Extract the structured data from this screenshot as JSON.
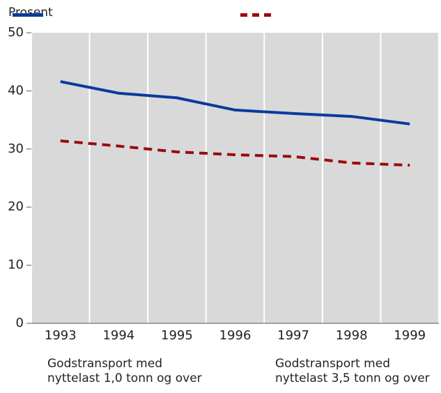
{
  "chart_data": {
    "type": "line",
    "y_label": "Prosent",
    "categories": [
      "1993",
      "1994",
      "1995",
      "1996",
      "1997",
      "1998",
      "1999"
    ],
    "series": [
      {
        "name": "Godstransport med nyttelast 1,0 tonn og over",
        "color": "#0b3a9e",
        "dashed": false,
        "values": [
          41.6,
          39.6,
          38.8,
          36.7,
          36.1,
          35.6,
          34.3
        ]
      },
      {
        "name": "Godstransport med nyttelast 3,5 tonn og over",
        "color": "#9b0b0b",
        "dashed": true,
        "values": [
          31.4,
          30.5,
          29.5,
          29.0,
          28.7,
          27.6,
          27.2
        ]
      }
    ],
    "ylim": [
      0,
      50
    ],
    "yticks": [
      0,
      10,
      20,
      30,
      40,
      50
    ],
    "grid": true
  }
}
